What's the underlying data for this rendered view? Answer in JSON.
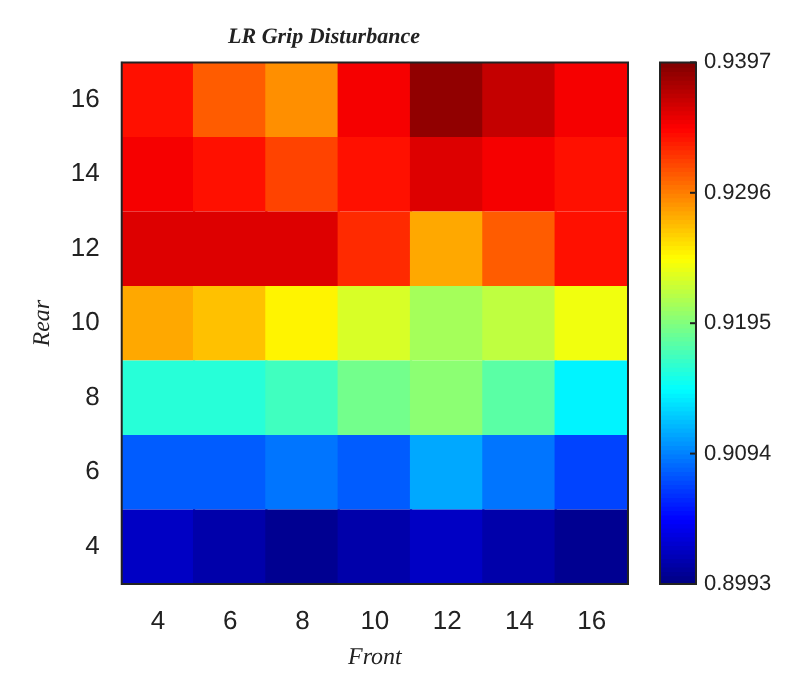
{
  "chart_data": {
    "type": "heatmap",
    "title": "LR Grip Disturbance",
    "xlabel": "Front",
    "ylabel": "Rear",
    "categories": [
      "4",
      "6",
      "8",
      "10",
      "12",
      "14",
      "16"
    ],
    "y_categories": [
      "16",
      "14",
      "12",
      "10",
      "8",
      "6",
      "4"
    ],
    "cells": [
      [
        0.934,
        0.931,
        0.929,
        0.935,
        0.939,
        0.937,
        0.935
      ],
      [
        0.935,
        0.934,
        0.932,
        0.934,
        0.936,
        0.935,
        0.934
      ],
      [
        0.936,
        0.936,
        0.936,
        0.933,
        0.928,
        0.931,
        0.934
      ],
      [
        0.928,
        0.927,
        0.925,
        0.923,
        0.921,
        0.922,
        0.924
      ],
      [
        0.916,
        0.916,
        0.917,
        0.919,
        0.92,
        0.918,
        0.914
      ],
      [
        0.908,
        0.908,
        0.909,
        0.908,
        0.911,
        0.909,
        0.907
      ],
      [
        0.902,
        0.901,
        0.9,
        0.901,
        0.902,
        0.901,
        0.9
      ]
    ],
    "clim": [
      0.8993,
      0.9397
    ],
    "cticks": [
      0.8993,
      0.9094,
      0.9195,
      0.9296,
      0.9397
    ]
  }
}
